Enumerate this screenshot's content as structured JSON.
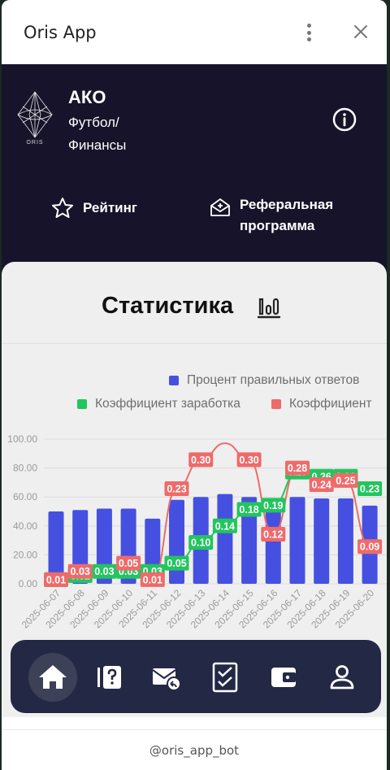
{
  "window": {
    "title": "Oris App"
  },
  "hero": {
    "logo_text": "ORIS",
    "team": "АКО",
    "subtitle_line1": "Футбол/",
    "subtitle_line2": "Финансы",
    "rating_label": "Рейтинг",
    "referral_label": "Реферальная программа"
  },
  "stats": {
    "title": "Статистика"
  },
  "chart_data": {
    "type": "bar",
    "categories": [
      "2025-06-07",
      "2025-06-08",
      "2025-06-09",
      "2025-06-10",
      "2025-06-11",
      "2025-06-12",
      "2025-06-13",
      "2025-06-14",
      "2025-06-15",
      "2025-06-16",
      "2025-06-17",
      "2025-06-18",
      "2025-06-19",
      "2025-06-20"
    ],
    "yticks": [
      "0.00",
      "20.00",
      "40.00",
      "60.00",
      "80.00",
      "100.00"
    ],
    "ylim": [
      0,
      100
    ],
    "legend": [
      "Процент правильных ответов",
      "Коэффициент заработка",
      "Коэффициент"
    ],
    "series": [
      {
        "name": "Процент правильных ответов",
        "type": "bar",
        "color": "#4650e0",
        "values": [
          50,
          51,
          52,
          52,
          45,
          58,
          60,
          62,
          60,
          55,
          60,
          59,
          59,
          54
        ]
      },
      {
        "name": "Коэффициент заработка",
        "type": "line",
        "color": "#22c55e",
        "values": [
          0.01,
          0.02,
          0.03,
          0.03,
          0.03,
          0.05,
          0.1,
          0.14,
          0.18,
          0.19,
          0.27,
          0.26,
          0.26,
          0.23
        ],
        "labels": [
          "0.01",
          "0.02",
          "0.03",
          "0.03",
          "0.03",
          "0.05",
          "0.10",
          "0.14",
          "0.18",
          "0.19",
          "0.27",
          "0.26",
          "0.26",
          "0.23"
        ]
      },
      {
        "name": "Коэффициент",
        "type": "line",
        "color": "#ef6a6a",
        "values": [
          0.01,
          0.03,
          0.03,
          0.05,
          0.01,
          0.23,
          0.3,
          0.34,
          0.3,
          0.12,
          0.28,
          0.24,
          0.25,
          0.09
        ],
        "labels": [
          "0.01",
          "0.03",
          "",
          "0.05",
          "0.01",
          "0.23",
          "0.30",
          "",
          "0.30",
          "0.12",
          "0.28",
          "0.24",
          "0.25",
          "0.09"
        ]
      }
    ]
  },
  "nav": {
    "items": [
      "home-icon",
      "quiz-icon",
      "mail-reply-icon",
      "checklist-icon",
      "wallet-icon",
      "profile-icon"
    ]
  },
  "footer": {
    "text": "@oris_app_bot"
  }
}
